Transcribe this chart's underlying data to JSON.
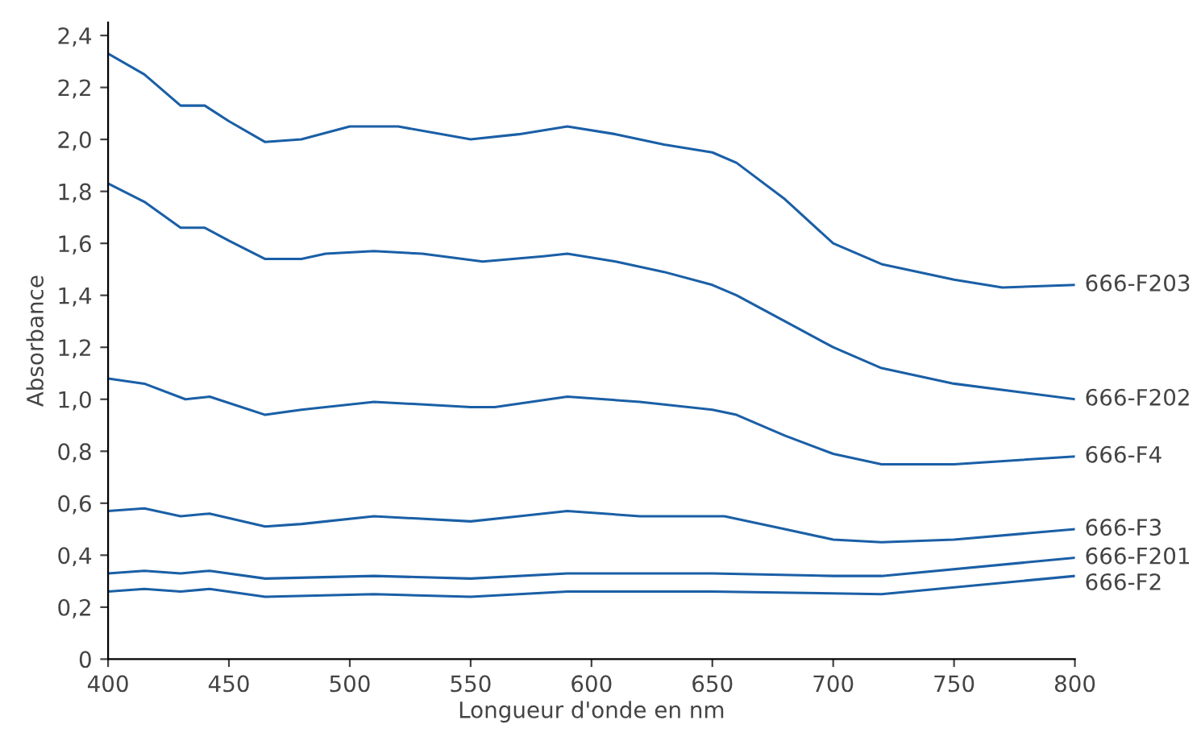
{
  "chart_data": {
    "type": "line",
    "xlabel": "Longueur d'onde en nm",
    "ylabel": "Absorbance",
    "xlim": [
      400,
      800
    ],
    "xticks": [
      400,
      450,
      500,
      550,
      600,
      650,
      700,
      750,
      800
    ],
    "ylim": [
      0,
      2.45
    ],
    "yticks": [
      0,
      {
        "value": 0.2,
        "label": "0,2"
      },
      {
        "value": 0.4,
        "label": "0,4"
      },
      {
        "value": 0.6,
        "label": "0,6"
      },
      {
        "value": 0.8,
        "label": "0,8"
      },
      {
        "value": 1.0,
        "label": "1,0"
      },
      {
        "value": 1.2,
        "label": "1,2"
      },
      {
        "value": 1.4,
        "label": "1,4"
      },
      {
        "value": 1.6,
        "label": "1,6"
      },
      {
        "value": 1.8,
        "label": "1,8"
      },
      {
        "value": 2.0,
        "label": "2,0"
      },
      {
        "value": 2.2,
        "label": "2,2"
      },
      {
        "value": 2.4,
        "label": "2,4"
      }
    ],
    "grid": false,
    "legend": false,
    "marker": "none",
    "line_style": "solid",
    "series": [
      {
        "name": "666-F203",
        "color": "#1a5fa6",
        "x": [
          400,
          415,
          430,
          440,
          450,
          465,
          480,
          500,
          520,
          550,
          570,
          590,
          610,
          630,
          650,
          660,
          680,
          700,
          720,
          750,
          770,
          800
        ],
        "values": [
          2.33,
          2.25,
          2.13,
          2.13,
          2.07,
          1.99,
          2.0,
          2.05,
          2.05,
          2.0,
          2.02,
          2.05,
          2.02,
          1.98,
          1.95,
          1.91,
          1.77,
          1.6,
          1.52,
          1.46,
          1.43,
          1.44
        ]
      },
      {
        "name": "666-F202",
        "color": "#1a5fa6",
        "x": [
          400,
          415,
          430,
          440,
          450,
          465,
          480,
          490,
          510,
          530,
          555,
          580,
          590,
          610,
          630,
          650,
          660,
          680,
          700,
          720,
          750,
          800
        ],
        "values": [
          1.83,
          1.76,
          1.66,
          1.66,
          1.61,
          1.54,
          1.54,
          1.56,
          1.57,
          1.56,
          1.53,
          1.55,
          1.56,
          1.53,
          1.49,
          1.44,
          1.4,
          1.3,
          1.2,
          1.12,
          1.06,
          1.0
        ]
      },
      {
        "name": "666-F4",
        "color": "#1a5fa6",
        "x": [
          400,
          415,
          432,
          442,
          465,
          480,
          510,
          550,
          560,
          590,
          620,
          650,
          660,
          680,
          700,
          720,
          750,
          800
        ],
        "values": [
          1.08,
          1.06,
          1.0,
          1.01,
          0.94,
          0.96,
          0.99,
          0.97,
          0.97,
          1.01,
          0.99,
          0.96,
          0.94,
          0.86,
          0.79,
          0.75,
          0.75,
          0.78
        ]
      },
      {
        "name": "666-F3",
        "color": "#1a5fa6",
        "x": [
          400,
          415,
          430,
          442,
          465,
          480,
          510,
          550,
          570,
          590,
          620,
          655,
          680,
          700,
          720,
          750,
          800
        ],
        "values": [
          0.57,
          0.58,
          0.55,
          0.56,
          0.51,
          0.52,
          0.55,
          0.53,
          0.55,
          0.57,
          0.55,
          0.55,
          0.5,
          0.46,
          0.45,
          0.46,
          0.5
        ]
      },
      {
        "name": "666-F201",
        "color": "#1a5fa6",
        "x": [
          400,
          415,
          430,
          442,
          465,
          510,
          550,
          590,
          650,
          700,
          720,
          800
        ],
        "values": [
          0.33,
          0.34,
          0.33,
          0.34,
          0.31,
          0.32,
          0.31,
          0.33,
          0.33,
          0.32,
          0.32,
          0.39
        ]
      },
      {
        "name": "666-F2",
        "color": "#1a5fa6",
        "x": [
          400,
          415,
          430,
          442,
          465,
          510,
          550,
          590,
          650,
          720,
          800
        ],
        "values": [
          0.26,
          0.27,
          0.26,
          0.27,
          0.24,
          0.25,
          0.24,
          0.26,
          0.26,
          0.25,
          0.32
        ]
      }
    ]
  }
}
